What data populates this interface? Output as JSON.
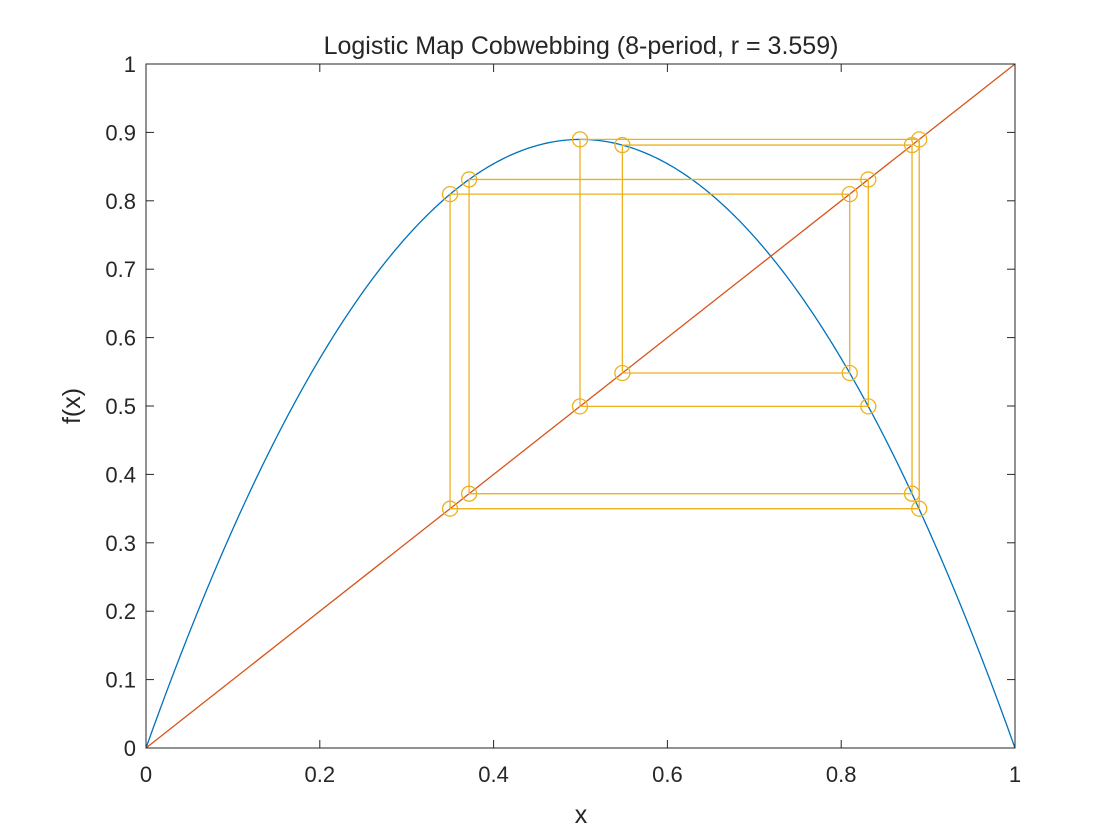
{
  "chart_data": {
    "type": "line",
    "title": "Logistic Map Cobwebbing (8-period, r = 3.559)",
    "xlabel": "x",
    "ylabel": "f(x)",
    "xlim": [
      0,
      1
    ],
    "ylim": [
      0,
      1
    ],
    "xticks": [
      0,
      0.2,
      0.4,
      0.6,
      0.8,
      1
    ],
    "xtick_labels": [
      "0",
      "0.2",
      "0.4",
      "0.6",
      "0.8",
      "1"
    ],
    "yticks": [
      0,
      0.1,
      0.2,
      0.3,
      0.4,
      0.5,
      0.6,
      0.7,
      0.8,
      0.9,
      1
    ],
    "ytick_labels": [
      "0",
      "0.1",
      "0.2",
      "0.3",
      "0.4",
      "0.5",
      "0.6",
      "0.7",
      "0.8",
      "0.9",
      "1"
    ],
    "grid": false,
    "r": 3.559,
    "series": [
      {
        "name": "logistic curve f(x) = r x (1 - x)",
        "kind": "function",
        "color": "#0072BD"
      },
      {
        "name": "identity line y = x",
        "kind": "line",
        "x": [
          0,
          1
        ],
        "y": [
          0,
          1
        ],
        "color": "#D95319"
      },
      {
        "name": "cobweb orbit",
        "kind": "cobweb",
        "color": "#EDB120",
        "orbit": [
          0.3499,
          0.8098,
          0.5482,
          0.8815,
          0.3718,
          0.8312,
          0.4994,
          0.8898
        ]
      }
    ]
  }
}
